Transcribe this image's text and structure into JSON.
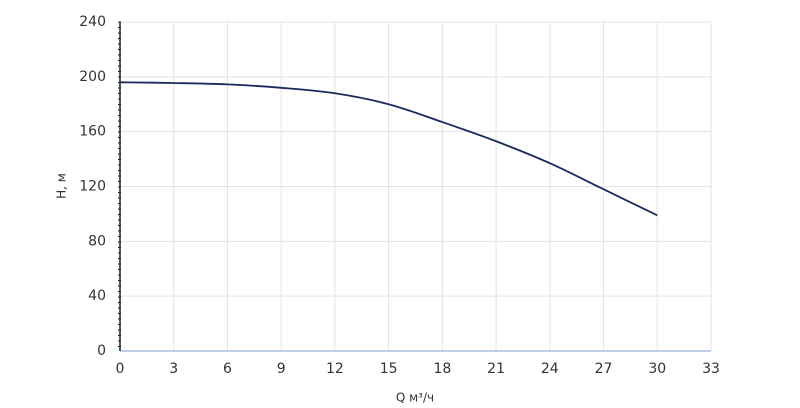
{
  "chart_data": {
    "type": "line",
    "x_label": "Q м³/ч",
    "y_label": "H, м",
    "x": [
      0,
      3,
      6,
      9,
      12,
      15,
      18,
      21,
      24,
      27,
      30
    ],
    "series": [
      {
        "name": "H",
        "color": "#1a2a5e",
        "values": [
          196,
          195.5,
          194.5,
          192,
          188,
          180,
          167,
          153,
          137,
          118,
          99
        ]
      }
    ],
    "xlim": [
      0,
      33
    ],
    "xticks": [
      0,
      3,
      6,
      9,
      12,
      15,
      18,
      21,
      24,
      27,
      30,
      33
    ],
    "ylim": [
      0,
      240
    ],
    "yticks": [
      0,
      40,
      80,
      120,
      160,
      200,
      240
    ],
    "grid": true
  }
}
